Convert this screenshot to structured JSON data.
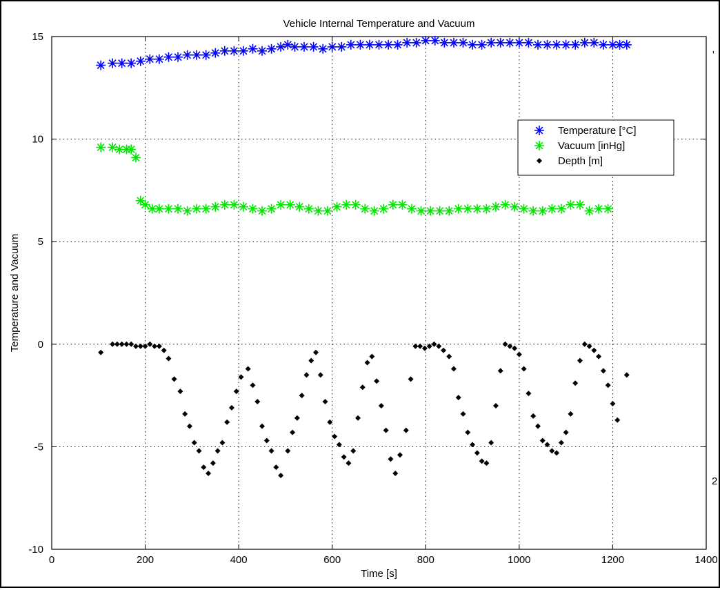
{
  "chart_data": {
    "type": "scatter",
    "title": "Vehicle Internal Temperature and Vacuum",
    "xlabel": "Time [s]",
    "ylabel": "Temperature and Vacuum",
    "xlim": [
      0,
      1400
    ],
    "ylim": [
      -10,
      15
    ],
    "xticks": [
      0,
      200,
      400,
      600,
      800,
      1000,
      1200,
      1400
    ],
    "yticks": [
      -10,
      -5,
      0,
      5,
      10,
      15
    ],
    "grid": true,
    "legend_position": "upper-right",
    "series": [
      {
        "name": "Temperature [°C]",
        "color": "#0000ff",
        "marker": "star",
        "x": [
          105,
          130,
          150,
          170,
          190,
          210,
          230,
          250,
          270,
          290,
          310,
          330,
          350,
          370,
          390,
          410,
          430,
          450,
          470,
          490,
          505,
          520,
          540,
          560,
          580,
          600,
          620,
          640,
          660,
          680,
          700,
          720,
          740,
          760,
          780,
          800,
          820,
          840,
          860,
          880,
          900,
          920,
          940,
          960,
          980,
          1000,
          1020,
          1040,
          1060,
          1080,
          1100,
          1120,
          1140,
          1160,
          1180,
          1200,
          1215,
          1230
        ],
        "y": [
          13.6,
          13.7,
          13.7,
          13.7,
          13.8,
          13.9,
          13.9,
          14.0,
          14.0,
          14.1,
          14.1,
          14.1,
          14.2,
          14.3,
          14.3,
          14.3,
          14.4,
          14.3,
          14.4,
          14.5,
          14.6,
          14.5,
          14.5,
          14.5,
          14.4,
          14.5,
          14.5,
          14.6,
          14.6,
          14.6,
          14.6,
          14.6,
          14.6,
          14.7,
          14.7,
          14.8,
          14.8,
          14.7,
          14.7,
          14.7,
          14.6,
          14.6,
          14.7,
          14.7,
          14.7,
          14.7,
          14.7,
          14.6,
          14.6,
          14.6,
          14.6,
          14.6,
          14.7,
          14.7,
          14.6,
          14.6,
          14.6,
          14.6
        ]
      },
      {
        "name": "Vacuum [inHg]",
        "color": "#00e600",
        "marker": "star",
        "x": [
          105,
          130,
          145,
          160,
          170,
          180,
          190,
          200,
          215,
          230,
          250,
          270,
          290,
          310,
          330,
          350,
          370,
          390,
          410,
          430,
          450,
          470,
          490,
          510,
          530,
          550,
          570,
          590,
          610,
          630,
          650,
          670,
          690,
          710,
          730,
          750,
          770,
          790,
          810,
          830,
          850,
          870,
          890,
          910,
          930,
          950,
          970,
          990,
          1010,
          1030,
          1050,
          1070,
          1090,
          1110,
          1130,
          1150,
          1170,
          1190
        ],
        "y": [
          9.6,
          9.6,
          9.5,
          9.5,
          9.5,
          9.1,
          7.0,
          6.8,
          6.6,
          6.6,
          6.6,
          6.6,
          6.5,
          6.6,
          6.6,
          6.7,
          6.8,
          6.8,
          6.7,
          6.6,
          6.5,
          6.6,
          6.8,
          6.8,
          6.7,
          6.6,
          6.5,
          6.5,
          6.7,
          6.8,
          6.8,
          6.6,
          6.5,
          6.6,
          6.8,
          6.8,
          6.6,
          6.5,
          6.5,
          6.5,
          6.5,
          6.6,
          6.6,
          6.6,
          6.6,
          6.7,
          6.8,
          6.7,
          6.6,
          6.5,
          6.5,
          6.6,
          6.6,
          6.8,
          6.8,
          6.5,
          6.6,
          6.6
        ]
      },
      {
        "name": "Depth [m]",
        "color": "#000000",
        "marker": "diamond",
        "x": [
          105,
          130,
          140,
          150,
          160,
          170,
          180,
          190,
          200,
          210,
          220,
          230,
          240,
          250,
          262,
          275,
          285,
          295,
          305,
          315,
          325,
          335,
          345,
          355,
          365,
          375,
          385,
          395,
          405,
          420,
          430,
          440,
          450,
          460,
          470,
          480,
          490,
          505,
          515,
          525,
          535,
          545,
          555,
          565,
          575,
          585,
          595,
          605,
          615,
          625,
          635,
          645,
          655,
          665,
          675,
          685,
          695,
          705,
          715,
          725,
          735,
          745,
          758,
          768,
          778,
          788,
          798,
          808,
          818,
          828,
          838,
          850,
          860,
          870,
          880,
          890,
          900,
          910,
          920,
          930,
          940,
          950,
          960,
          970,
          980,
          990,
          1000,
          1010,
          1020,
          1030,
          1040,
          1050,
          1060,
          1070,
          1080,
          1090,
          1100,
          1110,
          1120,
          1130,
          1140,
          1150,
          1160,
          1170,
          1180,
          1190,
          1200,
          1210,
          1230
        ],
        "y": [
          -0.4,
          0.0,
          0.0,
          0.0,
          0.0,
          0.0,
          -0.1,
          -0.1,
          -0.1,
          0.0,
          -0.1,
          -0.1,
          -0.3,
          -0.7,
          -1.7,
          -2.3,
          -3.4,
          -4.0,
          -4.8,
          -5.2,
          -6.0,
          -6.3,
          -5.8,
          -5.2,
          -4.8,
          -3.8,
          -3.1,
          -2.3,
          -1.6,
          -1.2,
          -2.0,
          -2.8,
          -4.0,
          -4.7,
          -5.2,
          -6.0,
          -6.4,
          -5.2,
          -4.3,
          -3.6,
          -2.5,
          -1.5,
          -0.8,
          -0.4,
          -1.5,
          -2.8,
          -3.8,
          -4.5,
          -4.9,
          -5.5,
          -5.8,
          -5.2,
          -3.6,
          -2.1,
          -0.9,
          -0.6,
          -1.8,
          -3.0,
          -4.2,
          -5.6,
          -6.3,
          -5.4,
          -4.2,
          -1.7,
          -0.1,
          -0.1,
          -0.2,
          -0.1,
          0.0,
          -0.1,
          -0.3,
          -0.6,
          -1.2,
          -2.6,
          -3.4,
          -4.3,
          -4.9,
          -5.3,
          -5.7,
          -5.8,
          -4.8,
          -3.0,
          -1.3,
          0.0,
          -0.1,
          -0.2,
          -0.5,
          -1.2,
          -2.4,
          -3.5,
          -4.0,
          -4.7,
          -4.9,
          -5.2,
          -5.3,
          -4.8,
          -4.3,
          -3.4,
          -1.9,
          -0.8,
          0.0,
          -0.1,
          -0.3,
          -0.6,
          -1.3,
          -2.0,
          -2.9,
          -3.7,
          -1.5
        ]
      }
    ]
  },
  "offscreen_fragments": {
    "top_right": "'",
    "bottom_right": "2"
  }
}
